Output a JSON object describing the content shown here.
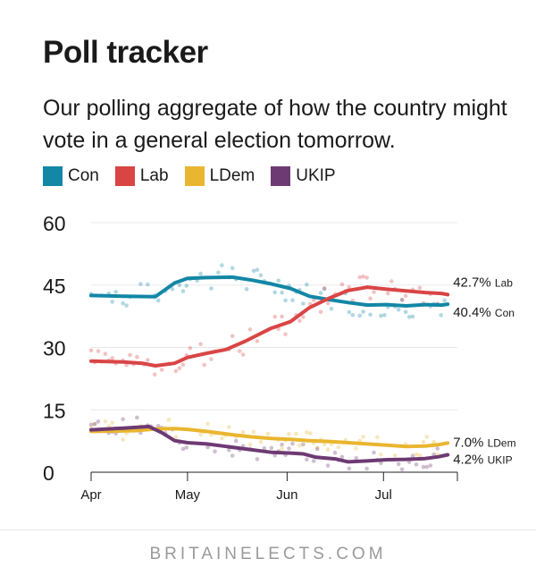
{
  "title": "Poll tracker",
  "subtitle": "Our polling aggregate of how the country might vote in a general election tomorrow.",
  "footer": "BRITAINELECTS.COM",
  "legend": [
    {
      "name": "Con",
      "color": "#1387a6"
    },
    {
      "name": "Lab",
      "color": "#d94545"
    },
    {
      "name": "LDem",
      "color": "#e9b62f"
    },
    {
      "name": "UKIP",
      "color": "#6e3a73"
    }
  ],
  "chart_data": {
    "type": "line",
    "title": "Poll tracker",
    "xlabel": "",
    "ylabel": "",
    "x_range_days": [
      0,
      114
    ],
    "ylim": [
      0,
      60
    ],
    "yticks": [
      0,
      15,
      30,
      45,
      60
    ],
    "xticks": [
      {
        "label": "Apr",
        "day": 0
      },
      {
        "label": "May",
        "day": 30
      },
      {
        "label": "Jun",
        "day": 61
      },
      {
        "label": "Jul",
        "day": 91
      }
    ],
    "grid": true,
    "series": [
      {
        "name": "Con",
        "color": "#1387a6",
        "end_label": "40.4% Con",
        "x": [
          0,
          10,
          20,
          26,
          30,
          36,
          44,
          50,
          56,
          62,
          68,
          74,
          80,
          86,
          92,
          98,
          104,
          109,
          111
        ],
        "values": [
          42.5,
          42.3,
          42.2,
          45.5,
          46.6,
          46.8,
          46.9,
          46.2,
          45.3,
          44.2,
          42.3,
          41.5,
          40.8,
          40.2,
          40.3,
          40.0,
          40.3,
          40.2,
          40.4
        ]
      },
      {
        "name": "Lab",
        "color": "#d94545",
        "end_label": "42.7% Lab",
        "x": [
          0,
          10,
          16,
          20,
          26,
          30,
          36,
          42,
          48,
          56,
          62,
          68,
          74,
          80,
          86,
          92,
          98,
          104,
          109,
          111
        ],
        "values": [
          26.7,
          26.5,
          26.2,
          25.6,
          26.2,
          27.6,
          28.6,
          29.5,
          31.5,
          34.6,
          36.2,
          39.6,
          41.8,
          43.7,
          44.5,
          44.0,
          43.6,
          43.2,
          43.0,
          42.7
        ]
      },
      {
        "name": "LDem",
        "color": "#e9b62f",
        "end_label": "7.0% LDem",
        "x": [
          0,
          8,
          14,
          20,
          26,
          30,
          36,
          44,
          50,
          56,
          62,
          68,
          74,
          80,
          86,
          92,
          98,
          104,
          108,
          111
        ],
        "values": [
          9.8,
          9.9,
          10.0,
          10.4,
          10.5,
          10.3,
          9.8,
          9.0,
          8.5,
          8.1,
          7.9,
          7.6,
          7.4,
          7.1,
          6.8,
          6.5,
          6.2,
          6.3,
          6.6,
          7.0
        ]
      },
      {
        "name": "UKIP",
        "color": "#6e3a73",
        "end_label": "4.2% UKIP",
        "x": [
          0,
          10,
          18,
          22,
          26,
          30,
          36,
          42,
          48,
          56,
          62,
          66,
          70,
          76,
          80,
          86,
          92,
          98,
          104,
          108,
          111
        ],
        "values": [
          10.2,
          10.6,
          11.0,
          9.5,
          7.6,
          7.1,
          6.8,
          6.2,
          5.6,
          4.8,
          4.6,
          4.4,
          3.6,
          3.2,
          2.5,
          2.7,
          3.0,
          3.1,
          3.3,
          3.7,
          4.2
        ]
      }
    ]
  }
}
